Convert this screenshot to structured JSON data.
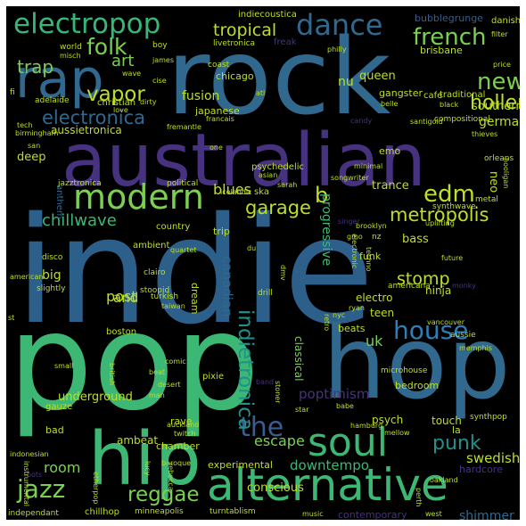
{
  "colors": {
    "background": "#000000",
    "palette": [
      "#3b5c8c",
      "#2c7fb8",
      "#21918c",
      "#3cb774",
      "#7ad151",
      "#bddf26",
      "#46327e",
      "#440154",
      "#31688e",
      "#35b779"
    ]
  },
  "words": [
    "indie",
    "pop",
    "rock",
    "australian",
    "hop",
    "hip",
    "alternative",
    "rap",
    "soul",
    "modern",
    "electropop",
    "dance",
    "french",
    "house",
    "jazz",
    "folk",
    "electronica",
    "tropical",
    "vapor",
    "new",
    "edm",
    "metropolis",
    "garage",
    "trap",
    "art",
    "holler",
    "punk",
    "the",
    "reggae",
    "stomp",
    "chillwave",
    "blues",
    "b",
    "nu",
    "fusion",
    "canadian",
    "indietronica",
    "uk",
    "post",
    "downtempo",
    "room",
    "swedish",
    "escape",
    "conscious",
    "shimmer",
    "german",
    "southern",
    "poptimism",
    "underground",
    "ambeat",
    "experimental",
    "japanese",
    "queen",
    "progressive",
    "and",
    "big",
    "trance",
    "bass",
    "teen",
    "deep",
    "aussietronica",
    "funk",
    "classical",
    "psych",
    "electro",
    "trip",
    "dream",
    "neo",
    "chamber",
    "contemporary",
    "rave",
    "touch",
    "beats",
    "bedroom",
    "ninja",
    "psychedelic",
    "chicago",
    "gangster",
    "emo",
    "la",
    "boston",
    "ska",
    "pixie",
    "ambient",
    "country",
    "anthem",
    "bad",
    "gauze",
    "microhouse",
    "bubblegrunge",
    "danish",
    "indiecoustica",
    "brisbane",
    "livetronica",
    "christian",
    "world",
    "coast",
    "cafe",
    "traditional",
    "compositional",
    "adelaide",
    "san",
    "fi",
    "tech",
    "birmingham",
    "chillhop",
    "independant",
    "minneapolis",
    "turntablism",
    "music",
    "west",
    "perth",
    "oakland",
    "hardcore",
    "synthpop",
    "mellow",
    "hamburg",
    "babe",
    "star",
    "band",
    "stoner",
    "desert",
    "man",
    "beat",
    "british",
    "comic",
    "baroque",
    "auckland",
    "twitch",
    "lucy",
    "rebecca",
    "etherpop",
    "roots",
    "indonesian",
    "small",
    "instrumental",
    "american",
    "slightly",
    "st",
    "disco",
    "clairo",
    "stoopid",
    "turkish",
    "taiwan",
    "drill",
    "americana",
    "nz",
    "future",
    "vancouver",
    "aussie",
    "memphis",
    "orleans",
    "hooligan",
    "metal",
    "synthwave",
    "uplifting",
    "brooklyn",
    "singer",
    "songwriter",
    "sarah",
    "icelandic",
    "political",
    "asian",
    "minimal",
    "electronic",
    "thieves",
    "santigold",
    "candy",
    "atl",
    "francais",
    "fremantle",
    "dirty",
    "cise",
    "love",
    "james",
    "misch",
    "wave",
    "boy",
    "philly",
    "freak",
    "belle",
    "black",
    "filter",
    "price",
    "nyc",
    "ryan",
    "retro",
    "monky",
    "performance",
    "one",
    "jazztronica",
    "dmv",
    "du",
    "quartet",
    "techno",
    "gmo"
  ]
}
